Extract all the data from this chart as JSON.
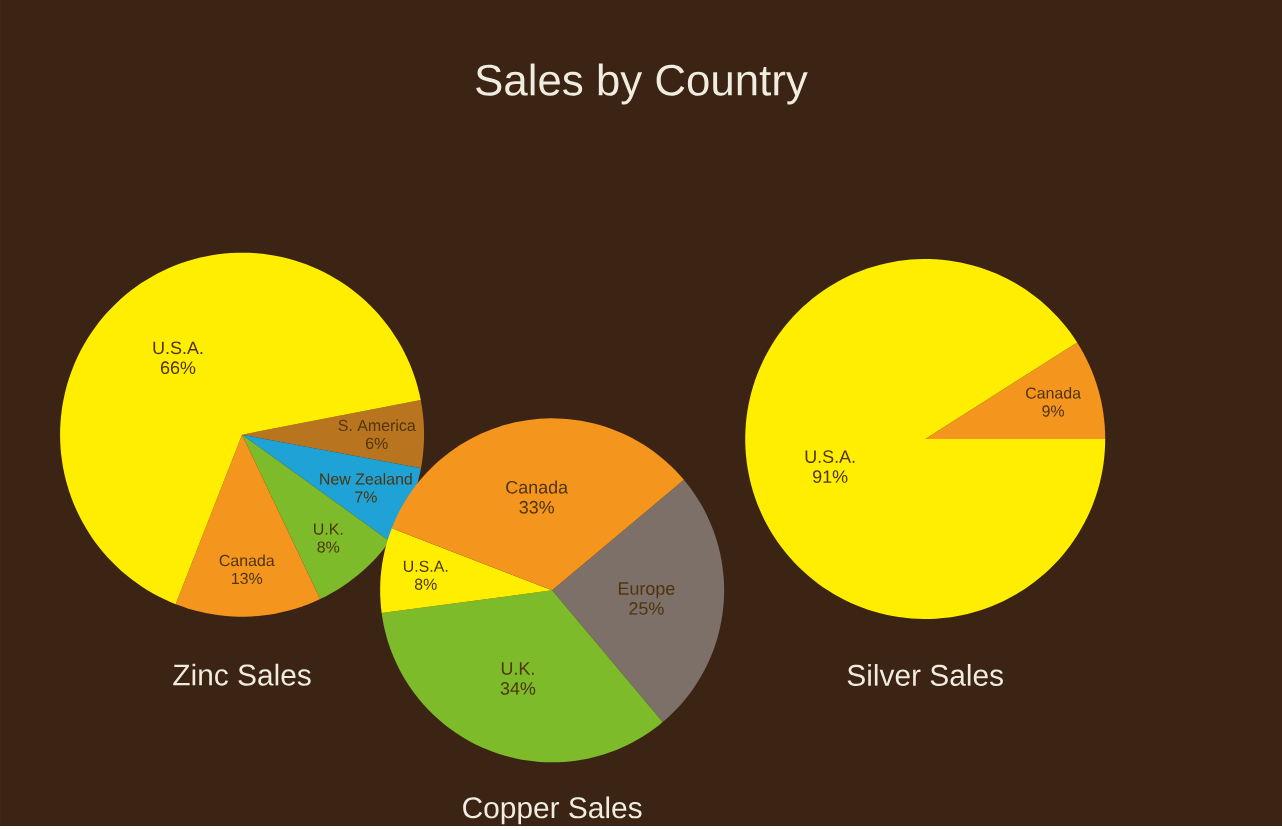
{
  "chart_data": [
    {
      "type": "other",
      "title": "Sales by Country"
    },
    {
      "type": "pie",
      "title": "Zinc Sales",
      "categories": [
        "S. America",
        "New Zealand",
        "U.K.",
        "Canada",
        "U.S.A."
      ],
      "values": [
        6,
        7,
        8,
        13,
        66
      ],
      "value_labels": [
        "6%",
        "7%",
        "8%",
        "13%",
        "66%"
      ],
      "colors": [
        "#b8741e",
        "#1fa3d6",
        "#7dbb2a",
        "#f4951e",
        "#ffee00"
      ]
    },
    {
      "type": "pie",
      "title": "Copper Sales",
      "categories": [
        "Europe",
        "U.K.",
        "U.S.A.",
        "Canada"
      ],
      "values": [
        25,
        34,
        8,
        33
      ],
      "value_labels": [
        "25%",
        "34%",
        "8%",
        "33%"
      ],
      "colors": [
        "#7c7068",
        "#7dbb2a",
        "#ffee00",
        "#f4951e"
      ]
    },
    {
      "type": "pie",
      "title": "Silver Sales",
      "categories": [
        "Canada",
        "U.S.A."
      ],
      "values": [
        9,
        91
      ],
      "value_labels": [
        "9%",
        "91%"
      ],
      "colors": [
        "#f4951e",
        "#ffee00"
      ]
    }
  ]
}
